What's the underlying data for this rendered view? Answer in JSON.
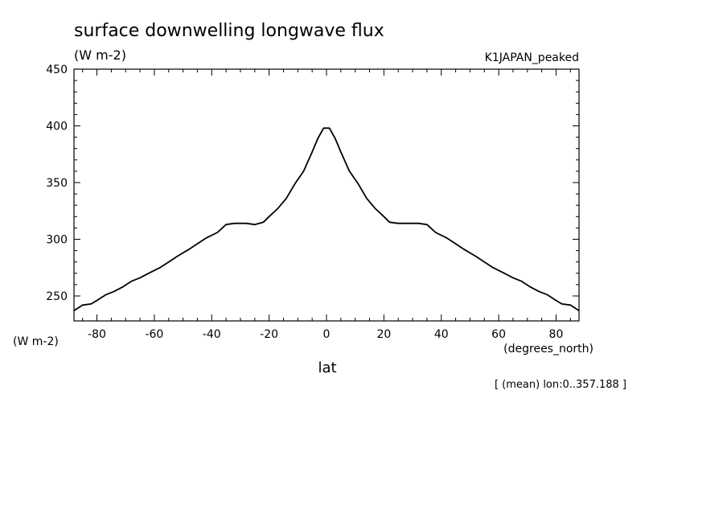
{
  "chart_data": {
    "type": "line",
    "title": "surface downwelling longwave flux",
    "units": "(W m-2)",
    "run_label": "K1JAPAN_peaked",
    "xlabel": "lat",
    "xunits": "(degrees_north)",
    "yunits": "(W m-2)",
    "note": "[ (mean) lon:0..357.188 ]",
    "xlim": [
      -88,
      88
    ],
    "ylim": [
      228,
      450
    ],
    "xticks": [
      -80,
      -60,
      -40,
      -20,
      0,
      20,
      40,
      60,
      80
    ],
    "xtick_labels": [
      "-80",
      "-60",
      "-40",
      "-20",
      "0",
      "20",
      "40",
      "60",
      "80"
    ],
    "yticks": [
      250,
      300,
      350,
      400,
      450
    ],
    "ytick_labels": [
      "250",
      "300",
      "350",
      "400",
      "450"
    ],
    "grid": false,
    "color": "#000000",
    "x": [
      -88,
      -85,
      -82,
      -80,
      -77,
      -74,
      -71,
      -68,
      -65,
      -62,
      -58,
      -55,
      -52,
      -48,
      -45,
      -42,
      -38,
      -35,
      -32,
      -28,
      -25,
      -22,
      -20,
      -17,
      -14,
      -11,
      -8,
      -5,
      -3,
      -1,
      1,
      3,
      5,
      8,
      11,
      14,
      17,
      20,
      22,
      25,
      28,
      32,
      35,
      38,
      42,
      45,
      48,
      52,
      55,
      58,
      62,
      65,
      68,
      71,
      74,
      77,
      80,
      82,
      85,
      88
    ],
    "y": [
      237,
      242,
      243,
      246,
      251,
      254,
      258,
      263,
      266,
      270,
      275,
      280,
      285,
      291,
      296,
      301,
      306,
      313,
      314,
      314,
      313,
      315,
      320,
      327,
      336,
      349,
      360,
      377,
      389,
      398,
      398,
      389,
      377,
      360,
      349,
      336,
      327,
      320,
      315,
      314,
      314,
      314,
      313,
      306,
      301,
      296,
      291,
      285,
      280,
      275,
      270,
      266,
      263,
      258,
      254,
      251,
      246,
      243,
      242,
      237
    ]
  }
}
